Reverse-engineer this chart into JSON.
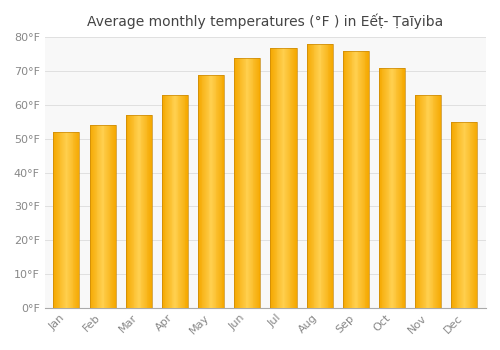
{
  "title": "Average monthly temperatures (°F ) in Eếṭ- Ṭaīyiba",
  "months": [
    "Jan",
    "Feb",
    "Mar",
    "Apr",
    "May",
    "Jun",
    "Jul",
    "Aug",
    "Sep",
    "Oct",
    "Nov",
    "Dec"
  ],
  "values": [
    52,
    54,
    57,
    63,
    69,
    74,
    77,
    78,
    76,
    71,
    63,
    55
  ],
  "bar_color_center": "#FFD050",
  "bar_color_edge": "#F5A800",
  "bar_outline_color": "#C8880A",
  "ylim": [
    0,
    80
  ],
  "yticks": [
    0,
    10,
    20,
    30,
    40,
    50,
    60,
    70,
    80
  ],
  "ylabel_suffix": "°F",
  "background_color": "#ffffff",
  "plot_bg_color": "#f8f8f8",
  "grid_color": "#e0e0e0",
  "title_fontsize": 10,
  "tick_fontsize": 8,
  "title_color": "#444444",
  "tick_color": "#888888",
  "bar_width": 0.72
}
